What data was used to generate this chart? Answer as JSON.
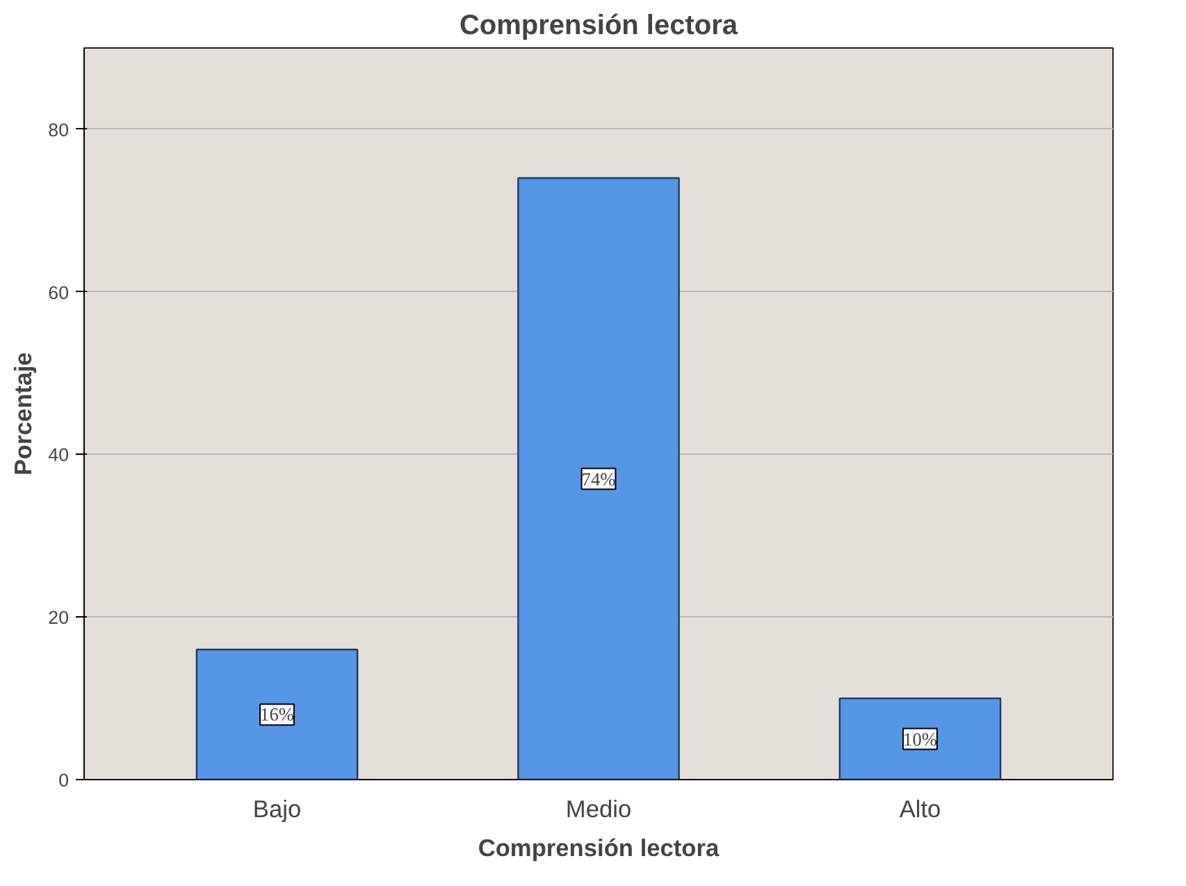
{
  "chart_data": {
    "type": "bar",
    "title": "Comprensión lectora",
    "xlabel": "Comprensión lectora",
    "ylabel": "Porcentaje",
    "categories": [
      "Bajo",
      "Medio",
      "Alto"
    ],
    "values": [
      16,
      74,
      10
    ],
    "value_labels": [
      "16%",
      "74%",
      "10%"
    ],
    "color": "#5596e6",
    "ylim": [
      0,
      90
    ],
    "yticks": [
      0,
      20,
      40,
      60,
      80
    ],
    "grid": "y"
  }
}
